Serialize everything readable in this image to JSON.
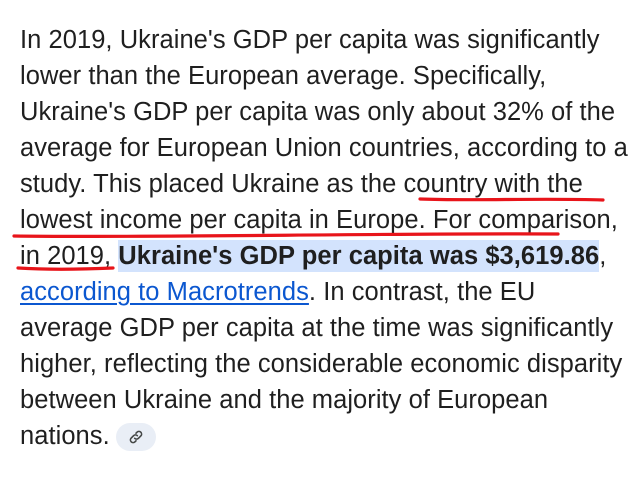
{
  "answer": {
    "part1": "In 2019, Ukraine's GDP per capita was significantly lower than the European average. Specifically, Ukraine's GDP per capita was only about 32% of the average for European Union countries, according to a study. This placed ",
    "underlined_phrase": "Ukraine as the country with the lowest income per capita in Europe.",
    "part2": " For comparison, in 2019, ",
    "highlighted_text": "Ukraine's GDP per capita was $3,619.86",
    "separator": ", ",
    "source_link": "according to Macrotrends",
    "part3": ". In contrast, the EU average GDP per capita at the time was significantly higher, reflecting the considerable economic disparity between Ukraine and the majority of European nations."
  },
  "source_chip": {
    "icon": "link-icon"
  },
  "colors": {
    "text": "#1f1f1f",
    "highlight": "#d3e3fd",
    "link": "#0b57d0",
    "marker": "#e8141a",
    "chip_bg": "#e9eef6"
  }
}
